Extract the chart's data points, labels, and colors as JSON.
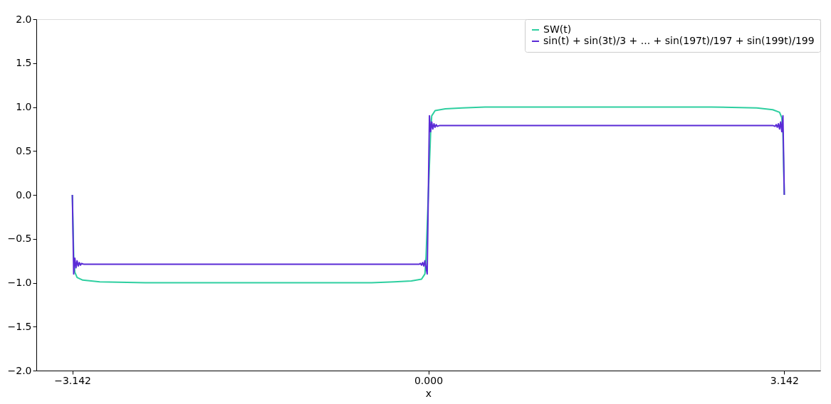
{
  "chart_data": {
    "type": "line",
    "xlabel": "x",
    "xlim": [
      -3.46,
      3.46
    ],
    "ylim": [
      -2.0,
      2.0
    ],
    "xticks": [
      {
        "value": -3.142,
        "label": "−3.142"
      },
      {
        "value": 0,
        "label": "0.000"
      },
      {
        "value": 3.142,
        "label": "3.142"
      }
    ],
    "yticks": [
      {
        "value": -2.0,
        "label": "−2.0"
      },
      {
        "value": -1.5,
        "label": "−1.5"
      },
      {
        "value": -1.0,
        "label": "−1.0"
      },
      {
        "value": -0.5,
        "label": "−0.5"
      },
      {
        "value": 0.0,
        "label": "0.0"
      },
      {
        "value": 0.5,
        "label": "0.5"
      },
      {
        "value": 1.0,
        "label": "1.0"
      },
      {
        "value": 1.5,
        "label": "1.5"
      },
      {
        "value": 2.0,
        "label": "2.0"
      }
    ],
    "grid": false,
    "legend": "top right",
    "marker": "none",
    "line_style": "solid",
    "series": [
      {
        "name": "SW(t)",
        "color": "#2ecfa0",
        "x": [
          -3.142,
          -3.13,
          -3.12,
          -3.1,
          -3.05,
          -2.9,
          -2.5,
          -2.0,
          -1.57,
          -1.0,
          -0.5,
          -0.3,
          -0.15,
          -0.06,
          -0.03,
          -0.02,
          0,
          0.02,
          0.03,
          0.06,
          0.15,
          0.3,
          0.5,
          1.0,
          1.57,
          2.0,
          2.5,
          2.9,
          3.04,
          3.1,
          3.12,
          3.13,
          3.142
        ],
        "values": [
          0,
          -0.7,
          -0.88,
          -0.94,
          -0.97,
          -0.99,
          -1.0,
          -1.0,
          -1.0,
          -1.0,
          -1.0,
          -0.99,
          -0.98,
          -0.96,
          -0.9,
          -0.7,
          0,
          0.7,
          0.9,
          0.96,
          0.98,
          0.99,
          1.0,
          1.0,
          1.0,
          1.0,
          1.0,
          0.99,
          0.97,
          0.94,
          0.88,
          0.7,
          0
        ]
      },
      {
        "name": "sin(t) + sin(3t)/3 + ... + sin(197t)/197 + sin(199t)/199",
        "color": "#5a2bd6",
        "x": [
          -3.142,
          -3.13,
          -3.12,
          -3.11,
          -3.1,
          -3.09,
          -3.08,
          -3.07,
          -3.06,
          -3.04,
          -3.0,
          -2.0,
          -1.0,
          -0.2,
          -0.1,
          -0.08,
          -0.07,
          -0.06,
          -0.05,
          -0.04,
          -0.03,
          -0.02,
          -0.01,
          0,
          0.01,
          0.02,
          0.03,
          0.04,
          0.05,
          0.06,
          0.07,
          0.08,
          0.1,
          0.2,
          1.0,
          2.0,
          3.0,
          3.04,
          3.06,
          3.07,
          3.08,
          3.09,
          3.1,
          3.11,
          3.12,
          3.13,
          3.142
        ],
        "values": [
          0,
          -0.9,
          -0.72,
          -0.83,
          -0.75,
          -0.81,
          -0.77,
          -0.8,
          -0.78,
          -0.79,
          -0.79,
          -0.79,
          -0.79,
          -0.79,
          -0.79,
          -0.79,
          -0.78,
          -0.8,
          -0.77,
          -0.81,
          -0.75,
          -0.83,
          -0.9,
          0,
          0.9,
          0.72,
          0.83,
          0.75,
          0.81,
          0.77,
          0.8,
          0.78,
          0.79,
          0.79,
          0.79,
          0.79,
          0.79,
          0.79,
          0.78,
          0.8,
          0.77,
          0.81,
          0.75,
          0.83,
          0.72,
          0.9,
          0
        ]
      }
    ]
  }
}
